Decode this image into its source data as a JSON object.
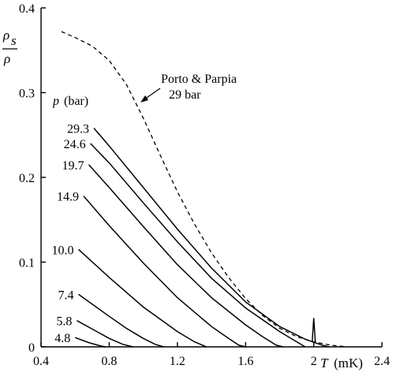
{
  "chart_data": {
    "type": "line",
    "xlabel_var": "T",
    "xlabel_unit": "(mK)",
    "ylabel": {
      "num": "ρ",
      "num_sub": "s",
      "den": "ρ"
    },
    "xlim": [
      0.4,
      2.4
    ],
    "ylim": [
      0,
      0.4
    ],
    "x_ticks": [
      "0.4",
      "0.8",
      "1.2",
      "1.6",
      "2",
      "2.4"
    ],
    "x_tick_values": [
      0.4,
      0.8,
      1.2,
      1.6,
      2.0,
      2.4
    ],
    "y_ticks": [
      "0",
      "0.1",
      "0.2",
      "0.3",
      "0.4"
    ],
    "y_tick_values": [
      0,
      0.1,
      0.2,
      0.3,
      0.4
    ],
    "legend_title_var": "p",
    "legend_title_unit": "(bar)",
    "series": [
      {
        "name": "29.3",
        "points": [
          [
            0.71,
            0.258
          ],
          [
            0.8,
            0.237
          ],
          [
            1.0,
            0.188
          ],
          [
            1.2,
            0.139
          ],
          [
            1.4,
            0.093
          ],
          [
            1.6,
            0.053
          ],
          [
            1.8,
            0.024
          ],
          [
            1.95,
            0.009
          ],
          [
            2.05,
            0.002
          ],
          [
            2.09,
            0.0
          ]
        ]
      },
      {
        "name": "24.6",
        "points": [
          [
            0.69,
            0.24
          ],
          [
            0.8,
            0.217
          ],
          [
            1.0,
            0.17
          ],
          [
            1.2,
            0.124
          ],
          [
            1.4,
            0.081
          ],
          [
            1.6,
            0.046
          ],
          [
            1.8,
            0.018
          ],
          [
            1.9,
            0.006
          ],
          [
            1.95,
            0.0
          ]
        ]
      },
      {
        "name": "19.7",
        "points": [
          [
            0.68,
            0.215
          ],
          [
            0.8,
            0.188
          ],
          [
            1.0,
            0.142
          ],
          [
            1.2,
            0.097
          ],
          [
            1.4,
            0.058
          ],
          [
            1.6,
            0.026
          ],
          [
            1.7,
            0.012
          ],
          [
            1.78,
            0.002
          ],
          [
            1.82,
            0.0
          ]
        ]
      },
      {
        "name": "14.9",
        "points": [
          [
            0.65,
            0.178
          ],
          [
            0.8,
            0.143
          ],
          [
            1.0,
            0.099
          ],
          [
            1.2,
            0.058
          ],
          [
            1.4,
            0.024
          ],
          [
            1.5,
            0.01
          ],
          [
            1.56,
            0.002
          ],
          [
            1.6,
            0.0
          ]
        ]
      },
      {
        "name": "10.0",
        "points": [
          [
            0.62,
            0.115
          ],
          [
            0.8,
            0.082
          ],
          [
            1.0,
            0.047
          ],
          [
            1.2,
            0.018
          ],
          [
            1.3,
            0.006
          ],
          [
            1.37,
            0.0
          ]
        ]
      },
      {
        "name": "7.4",
        "points": [
          [
            0.62,
            0.062
          ],
          [
            0.8,
            0.036
          ],
          [
            0.9,
            0.022
          ],
          [
            1.0,
            0.01
          ],
          [
            1.07,
            0.003
          ],
          [
            1.12,
            0.0
          ]
        ]
      },
      {
        "name": "5.8",
        "points": [
          [
            0.61,
            0.031
          ],
          [
            0.7,
            0.021
          ],
          [
            0.8,
            0.01
          ],
          [
            0.88,
            0.003
          ],
          [
            0.94,
            0.0
          ]
        ]
      },
      {
        "name": "4.8",
        "points": [
          [
            0.6,
            0.011
          ],
          [
            0.68,
            0.005
          ],
          [
            0.75,
            0.001
          ],
          [
            0.78,
            0.0
          ]
        ]
      }
    ],
    "reference": {
      "name_line1": "Porto & Parpia",
      "name_line2": "29 bar",
      "style": "dashed",
      "points": [
        [
          0.52,
          0.372
        ],
        [
          0.6,
          0.365
        ],
        [
          0.7,
          0.355
        ],
        [
          0.8,
          0.338
        ],
        [
          0.9,
          0.31
        ],
        [
          1.0,
          0.27
        ],
        [
          1.1,
          0.226
        ],
        [
          1.2,
          0.183
        ],
        [
          1.3,
          0.145
        ],
        [
          1.4,
          0.111
        ],
        [
          1.5,
          0.082
        ],
        [
          1.6,
          0.057
        ],
        [
          1.7,
          0.037
        ],
        [
          1.8,
          0.022
        ],
        [
          1.9,
          0.012
        ],
        [
          2.0,
          0.006
        ],
        [
          2.1,
          0.002
        ],
        [
          2.2,
          0.0
        ]
      ]
    },
    "spikes": [
      [
        2.0,
        0.034
      ]
    ],
    "grid": false
  }
}
